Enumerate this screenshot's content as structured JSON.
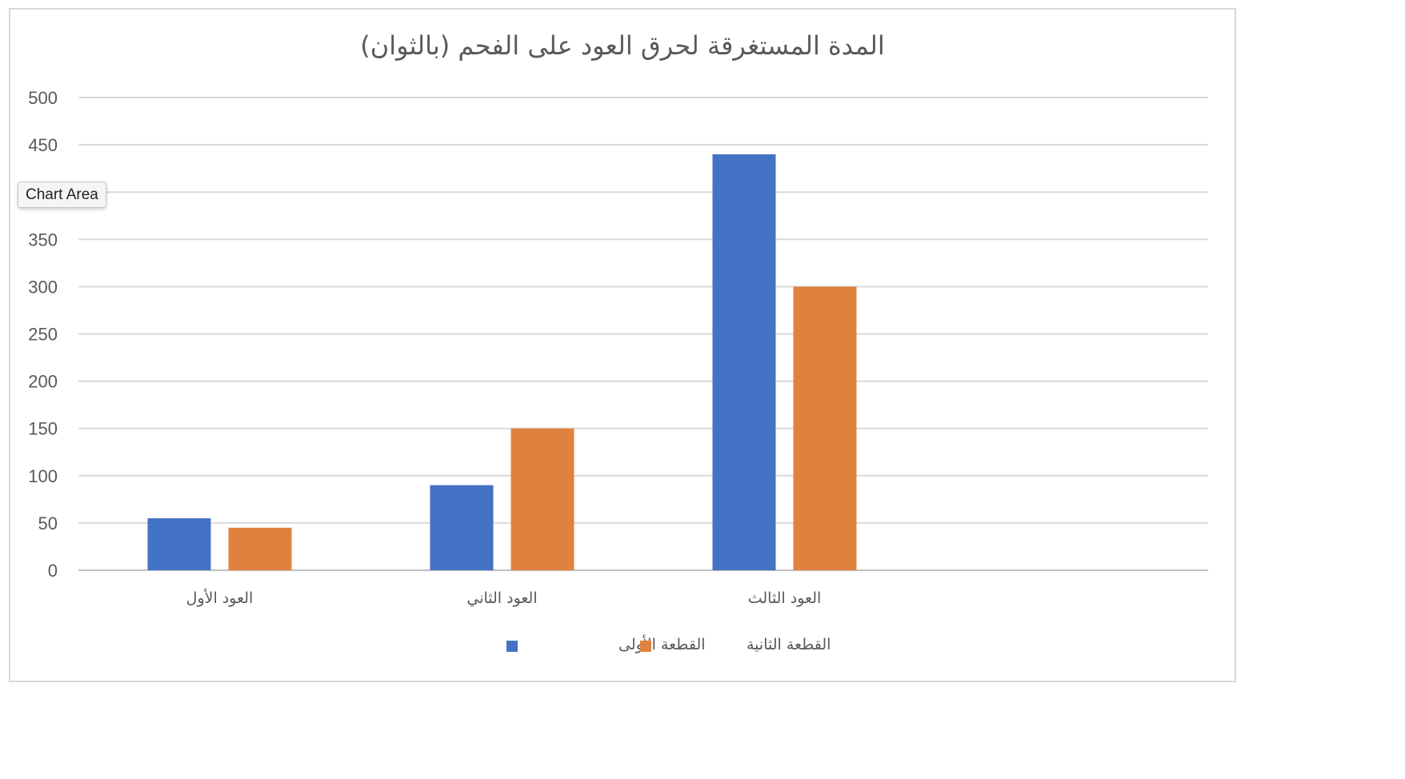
{
  "chart_data": {
    "type": "bar",
    "title": "المدة المستغرقة لحرق العود على الفحم (بالثوان)",
    "categories": [
      "العود الأول",
      "العود الثاني",
      "العود الثالث"
    ],
    "series": [
      {
        "name": "القطعة الأولى",
        "color": "#4472c4",
        "values": [
          55,
          90,
          440
        ]
      },
      {
        "name": "القطعة الثانية",
        "color": "#e0823f",
        "values": [
          45,
          150,
          300
        ]
      }
    ],
    "ylim": [
      0,
      500
    ],
    "yticks": [
      "0",
      "50",
      "100",
      "150",
      "200",
      "250",
      "300",
      "350",
      "400",
      "450",
      "500"
    ],
    "grid": true,
    "legend": "bottom"
  },
  "tooltip": {
    "label": "Chart Area"
  }
}
